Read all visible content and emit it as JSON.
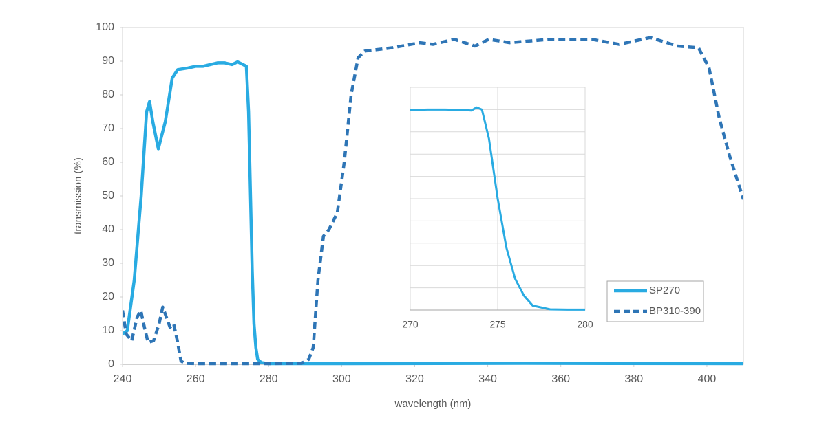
{
  "chart_data": [
    {
      "type": "line",
      "x_label": "wavelength (nm)",
      "y_label": "transmission (%)",
      "xlim": [
        240,
        410
      ],
      "xticks": [
        240,
        260,
        280,
        300,
        320,
        340,
        360,
        380,
        400
      ],
      "ylim": [
        0,
        100
      ],
      "yticks": [
        0,
        10,
        20,
        30,
        40,
        50,
        60,
        70,
        80,
        90,
        100
      ],
      "grid": false,
      "legend": "right",
      "series": [
        {
          "name": "SP270",
          "color": "#29abe2",
          "dashed": false,
          "x": [
            240,
            241.3,
            243.2,
            245.1,
            246.6,
            247.4,
            248.3,
            249.8,
            251.7,
            253.6,
            255.1,
            258,
            260,
            262,
            264,
            266,
            268,
            270,
            271.5,
            273,
            273.9,
            274.5,
            275,
            275.5,
            276,
            276.5,
            277,
            278,
            280,
            300,
            350,
            410
          ],
          "values": [
            9,
            10,
            25,
            50,
            75,
            78,
            72,
            64,
            72,
            85,
            87.5,
            88,
            88.5,
            88.5,
            89,
            89.5,
            89.5,
            89,
            89.8,
            89,
            88.5,
            75,
            52,
            28,
            12,
            5,
            1.5,
            0.5,
            0.2,
            0.2,
            0.3,
            0.2
          ]
        },
        {
          "name": "BP310-390",
          "color": "#2e75b6",
          "dashed": true,
          "x": [
            240,
            241,
            242.5,
            244,
            245,
            246,
            247,
            248.5,
            250,
            251,
            252,
            253,
            254,
            255,
            256,
            257,
            260,
            280,
            289,
            291,
            292.2,
            293.5,
            295,
            296.5,
            298.8,
            300.7,
            302.6,
            304.5,
            306.3,
            314,
            321.4,
            325,
            330.8,
            336.5,
            340.3,
            346,
            357,
            368.5,
            376,
            384.5,
            392,
            397.7,
            400.6,
            403.4,
            406.2,
            410
          ],
          "values": [
            16,
            9,
            7,
            14,
            16,
            11,
            6.5,
            7,
            12,
            17,
            14,
            11,
            12,
            7,
            1,
            0.3,
            0.2,
            0.2,
            0.3,
            1.5,
            5,
            25,
            38,
            40,
            45,
            60,
            80,
            91,
            93,
            94,
            95.5,
            95,
            96.5,
            94.5,
            96.5,
            95.5,
            96.5,
            96.5,
            95,
            97,
            94.5,
            94,
            88,
            73,
            62,
            49
          ]
        }
      ]
    },
    {
      "type": "line",
      "xlim": [
        270,
        280
      ],
      "xticks": [
        270,
        275,
        280
      ],
      "ylim": [
        0,
        100
      ],
      "yticks": [
        0,
        10,
        20,
        30,
        40,
        50,
        60,
        70,
        80,
        90,
        100
      ],
      "ytick_labels": false,
      "grid": true,
      "series": [
        {
          "color": "#29abe2",
          "dashed": false,
          "x": [
            270,
            271,
            272,
            273,
            273.5,
            273.8,
            274.1,
            274.5,
            275,
            275.5,
            276,
            276.5,
            277,
            278,
            279,
            280
          ],
          "values": [
            89.8,
            90,
            90,
            89.8,
            89.6,
            91,
            90,
            77,
            50,
            28,
            14,
            6.5,
            2,
            0.3,
            0.2,
            0.2
          ]
        }
      ]
    }
  ]
}
